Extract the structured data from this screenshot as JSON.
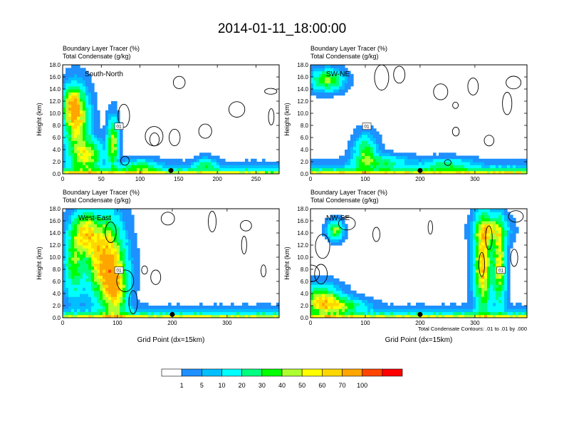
{
  "title": "2014-01-11_18:00:00",
  "panel_subtitle": [
    "Boundary Layer Tracer   (%)",
    "Total Condensate   (g/kg)"
  ],
  "ylabel": "Height (km)",
  "xlabel": "Grid Point (dx=15km)",
  "contour_note": "Total Condensate Contours: .01 to .01 by .000",
  "colors": {
    "fill_levels": [
      "#ffffff",
      "#1e90ff",
      "#00bfff",
      "#00ffff",
      "#00ff7f",
      "#00ff00",
      "#adff2f",
      "#ffff00",
      "#ffd700",
      "#ffa500",
      "#ff4500",
      "#ff0000"
    ],
    "contour": "#000000"
  },
  "chart_data": [
    {
      "type": "heatmap",
      "name": "South-North",
      "xlim": [
        0,
        280
      ],
      "ylim": [
        0,
        18
      ],
      "xticks": [
        "0",
        "50",
        "100",
        "150",
        "200",
        "250"
      ],
      "yticks": [
        "0.0",
        "2.0",
        "4.0",
        "6.0",
        "8.0",
        "10.0",
        "12.0",
        "14.0",
        "16.0",
        "18.0"
      ],
      "marker_x": 140,
      "contour_label": "01",
      "grid_points": 280
    },
    {
      "type": "heatmap",
      "name": "SW-NE",
      "xlim": [
        0,
        395
      ],
      "ylim": [
        0,
        18
      ],
      "xticks": [
        "0",
        "100",
        "200",
        "300"
      ],
      "yticks": [
        "0.0",
        "2.0",
        "4.0",
        "6.0",
        "8.0",
        "10.0",
        "12.0",
        "14.0",
        "16.0",
        "18.0"
      ],
      "marker_x": 200,
      "contour_label": "01",
      "grid_points": 395
    },
    {
      "type": "heatmap",
      "name": "West-East",
      "xlim": [
        0,
        395
      ],
      "ylim": [
        0,
        18
      ],
      "xticks": [
        "0",
        "100",
        "200",
        "300"
      ],
      "yticks": [
        "0.0",
        "2.0",
        "4.0",
        "6.0",
        "8.0",
        "10.0",
        "12.0",
        "14.0",
        "16.0",
        "18.0"
      ],
      "marker_x": 200,
      "contour_label": "01",
      "grid_points": 395
    },
    {
      "type": "heatmap",
      "name": "NW-SE",
      "xlim": [
        0,
        395
      ],
      "ylim": [
        0,
        18
      ],
      "xticks": [
        "0",
        "100",
        "200",
        "300"
      ],
      "yticks": [
        "0.0",
        "2.0",
        "4.0",
        "6.0",
        "8.0",
        "10.0",
        "12.0",
        "14.0",
        "16.0",
        "18.0"
      ],
      "marker_x": 200,
      "contour_label": "01",
      "grid_points": 395
    }
  ],
  "colorbar": {
    "labels": [
      "1",
      "5",
      "10",
      "20",
      "30",
      "40",
      "50",
      "60",
      "70",
      "100"
    ]
  }
}
